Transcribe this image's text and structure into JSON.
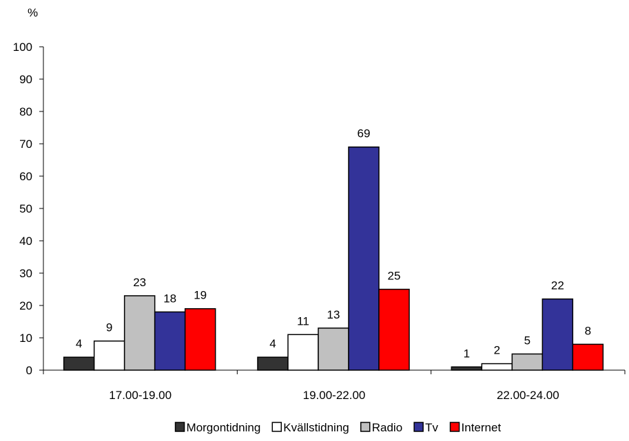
{
  "chart_data": {
    "type": "bar",
    "unit_label": "%",
    "categories": [
      "17.00-19.00",
      "19.00-22.00",
      "22.00-24.00"
    ],
    "series": [
      {
        "name": "Morgontidning",
        "color": "#333333",
        "values": [
          4,
          4,
          1
        ]
      },
      {
        "name": "Kvällstidning",
        "color": "#ffffff",
        "values": [
          9,
          11,
          2
        ]
      },
      {
        "name": "Radio",
        "color": "#c0c0c0",
        "values": [
          23,
          13,
          5
        ]
      },
      {
        "name": "Tv",
        "color": "#333399",
        "values": [
          18,
          69,
          22
        ]
      },
      {
        "name": "Internet",
        "color": "#ff0000",
        "values": [
          19,
          25,
          8
        ]
      }
    ],
    "ylim": [
      0,
      100
    ],
    "yticks": [
      0,
      10,
      20,
      30,
      40,
      50,
      60,
      70,
      80,
      90,
      100
    ],
    "grid": false,
    "legend_position": "bottom",
    "data_labels": true
  }
}
